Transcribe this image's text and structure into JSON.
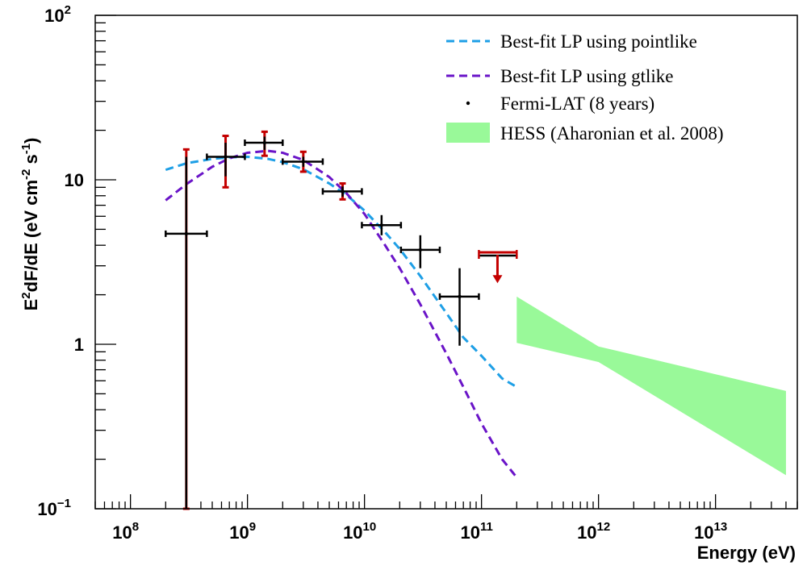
{
  "chart_data": {
    "type": "scatter",
    "xlabel": "Energy (eV)",
    "ylabel": "E²dF/dE (eV cm⁻² s⁻¹)",
    "ylabel_parts": {
      "pre1": "E",
      "sup1": "2",
      "mid1": "dF/dE (eV cm",
      "sup2": "-2",
      "mid2": " s",
      "sup3": "-1",
      "end": ")"
    },
    "x_scale": "log",
    "y_scale": "log",
    "xlim": [
      50000000,
      50000000000000
    ],
    "ylim": [
      0.1,
      100
    ],
    "x_ticks": [
      {
        "value": 100000000,
        "base": "10",
        "exp": "8"
      },
      {
        "value": 1000000000,
        "base": "10",
        "exp": "9"
      },
      {
        "value": 10000000000,
        "base": "10",
        "exp": "10"
      },
      {
        "value": 100000000000,
        "base": "10",
        "exp": "11"
      },
      {
        "value": 1000000000000,
        "base": "10",
        "exp": "12"
      },
      {
        "value": 10000000000000,
        "base": "10",
        "exp": "13"
      }
    ],
    "y_ticks": [
      {
        "value": 0.1,
        "base": "10",
        "exp": "−1"
      },
      {
        "value": 1,
        "base": "1",
        "exp": ""
      },
      {
        "value": 10,
        "base": "10",
        "exp": ""
      },
      {
        "value": 100,
        "base": "10",
        "exp": "2"
      }
    ],
    "grid": false,
    "legend_position": "top-right",
    "legend": {
      "pointlike": "Best-fit LP using pointlike",
      "gtlike": "Best-fit LP using gtlike",
      "fermi": "Fermi-LAT (8 years)",
      "hess": "HESS (Aharonian et al. 2008)"
    },
    "colors": {
      "pointlike": "#1e9fe6",
      "gtlike": "#6a14c8",
      "stat_err": "#000000",
      "sys_err": "#c40000",
      "hess_band": "#99f999"
    },
    "series": [
      {
        "name": "Best-fit LP using pointlike",
        "type": "line",
        "x": [
          200000000,
          300000000,
          500000000,
          700000000,
          1000000000,
          1500000000,
          2000000000,
          3000000000,
          5000000000,
          7000000000,
          10000000000,
          15000000000,
          20000000000,
          30000000000,
          50000000000,
          70000000000,
          100000000000,
          150000000000,
          200000000000
        ],
        "y": [
          11.5,
          12.6,
          13.4,
          13.7,
          13.8,
          13.4,
          12.8,
          11.6,
          9.5,
          8.1,
          6.5,
          4.8,
          3.8,
          2.6,
          1.55,
          1.1,
          0.85,
          0.62,
          0.55
        ]
      },
      {
        "name": "Best-fit LP using gtlike",
        "type": "line",
        "x": [
          200000000,
          300000000,
          500000000,
          700000000,
          1000000000,
          1500000000,
          2000000000,
          3000000000,
          5000000000,
          7000000000,
          10000000000,
          15000000000,
          20000000000,
          30000000000,
          50000000000,
          70000000000,
          100000000000,
          150000000000,
          200000000000
        ],
        "y": [
          7.5,
          9.4,
          12.0,
          13.5,
          14.6,
          15.0,
          14.6,
          13.2,
          10.4,
          8.3,
          6.2,
          4.0,
          2.9,
          1.75,
          0.88,
          0.55,
          0.33,
          0.2,
          0.155
        ]
      },
      {
        "name": "Fermi-LAT (8 years)",
        "type": "errorbar",
        "points": [
          {
            "x": 300000000,
            "xlo": 200000000,
            "xhi": 450000000,
            "y": 4.7,
            "stat_lo": 0.1,
            "stat_hi": 13.8,
            "sys_lo": 0.1,
            "sys_hi": 15.3
          },
          {
            "x": 650000000,
            "xlo": 450000000,
            "xhi": 950000000,
            "y": 13.8,
            "stat_lo": 10.5,
            "stat_hi": 16.8,
            "sys_lo": 9.0,
            "sys_hi": 18.5
          },
          {
            "x": 1400000000,
            "xlo": 950000000,
            "xhi": 2000000000,
            "y": 16.8,
            "stat_lo": 15.2,
            "stat_hi": 18.3,
            "sys_lo": 14.0,
            "sys_hi": 19.6
          },
          {
            "x": 3000000000,
            "xlo": 2000000000,
            "xhi": 4400000000,
            "y": 12.9,
            "stat_lo": 12.0,
            "stat_hi": 13.8,
            "sys_lo": 11.2,
            "sys_hi": 14.8
          },
          {
            "x": 6500000000,
            "xlo": 4400000000,
            "xhi": 9500000000,
            "y": 8.5,
            "stat_lo": 7.9,
            "stat_hi": 9.1,
            "sys_lo": 7.6,
            "sys_hi": 9.5
          },
          {
            "x": 14000000000,
            "xlo": 9500000000,
            "xhi": 20500000000,
            "y": 5.3,
            "stat_lo": 4.6,
            "stat_hi": 6.1
          },
          {
            "x": 30000000000,
            "xlo": 20500000000,
            "xhi": 44000000000,
            "y": 3.75,
            "stat_lo": 2.9,
            "stat_hi": 4.6
          },
          {
            "x": 65000000000,
            "xlo": 44000000000,
            "xhi": 95000000000,
            "y": 1.95,
            "stat_lo": 0.98,
            "stat_hi": 2.9
          }
        ]
      },
      {
        "name": "Fermi-LAT upper limit",
        "type": "upper_limit",
        "points": [
          {
            "x": 137000000000,
            "xlo": 95000000000,
            "xhi": 200000000000,
            "y": 3.5,
            "arrow_to": 2.35
          }
        ]
      },
      {
        "name": "HESS (Aharonian et al. 2008)",
        "type": "band",
        "x": [
          200000000000,
          1000000000000,
          40000000000000
        ],
        "y_lo": [
          1.02,
          0.78,
          0.16
        ],
        "y_hi": [
          1.95,
          0.97,
          0.52
        ]
      }
    ]
  }
}
